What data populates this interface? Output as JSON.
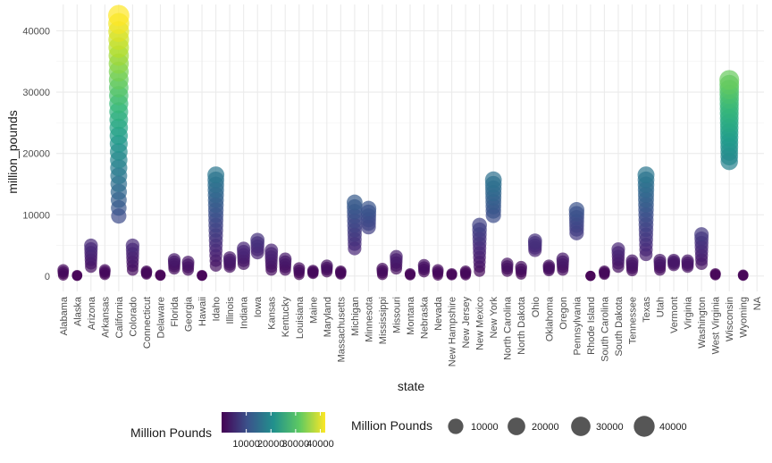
{
  "chart_data": {
    "type": "scatter",
    "xlabel": "state",
    "ylabel": "million_pounds",
    "ylim": [
      -2500,
      44300
    ],
    "yticks": [
      0,
      10000,
      20000,
      30000,
      40000
    ],
    "yticklabels": [
      "0",
      "10000",
      "20000",
      "30000",
      "40000"
    ],
    "grid": true,
    "legend_placement": "bottom",
    "color_scale": "viridis",
    "color_domain": [
      0,
      42000
    ],
    "size_domain": [
      0,
      44000
    ],
    "categories": [
      "Alabama",
      "Alaska",
      "Arizona",
      "Arkansas",
      "California",
      "Colorado",
      "Connecticut",
      "Delaware",
      "Florida",
      "Georgia",
      "Hawaii",
      "Idaho",
      "Illinois",
      "Indiana",
      "Iowa",
      "Kansas",
      "Kentucky",
      "Louisiana",
      "Maine",
      "Maryland",
      "Massachusetts",
      "Michigan",
      "Minnesota",
      "Mississippi",
      "Missouri",
      "Montana",
      "Nebraska",
      "Nevada",
      "New Hampshire",
      "New Jersey",
      "New Mexico",
      "New York",
      "North Carolina",
      "North Dakota",
      "Ohio",
      "Oklahoma",
      "Oregon",
      "Pennsylvania",
      "Rhode Island",
      "South Carolina",
      "South Dakota",
      "Tennessee",
      "Texas",
      "Utah",
      "Vermont",
      "Virginia",
      "Washington",
      "West Virginia",
      "Wisconsin",
      "Wyoming",
      "NA"
    ],
    "ranges": [
      [
        100,
        1000
      ],
      [
        10,
        150
      ],
      [
        1500,
        5000
      ],
      [
        200,
        1000
      ],
      [
        9800,
        42500
      ],
      [
        1000,
        5000
      ],
      [
        300,
        800
      ],
      [
        60,
        200
      ],
      [
        1200,
        2700
      ],
      [
        1000,
        2300
      ],
      [
        30,
        150
      ],
      [
        1700,
        16500
      ],
      [
        1500,
        3000
      ],
      [
        2000,
        4500
      ],
      [
        3800,
        5900
      ],
      [
        1000,
        4200
      ],
      [
        1000,
        2800
      ],
      [
        200,
        1300
      ],
      [
        400,
        900
      ],
      [
        700,
        1700
      ],
      [
        300,
        800
      ],
      [
        4500,
        12000
      ],
      [
        8000,
        11000
      ],
      [
        200,
        1200
      ],
      [
        1200,
        3200
      ],
      [
        150,
        400
      ],
      [
        700,
        1800
      ],
      [
        100,
        1000
      ],
      [
        150,
        400
      ],
      [
        150,
        800
      ],
      [
        800,
        8300
      ],
      [
        9900,
        15700
      ],
      [
        800,
        2000
      ],
      [
        300,
        1500
      ],
      [
        4200,
        5800
      ],
      [
        900,
        1700
      ],
      [
        1000,
        2800
      ],
      [
        7000,
        10800
      ],
      [
        10,
        40
      ],
      [
        250,
        800
      ],
      [
        1500,
        4400
      ],
      [
        900,
        2500
      ],
      [
        3500,
        16500
      ],
      [
        1000,
        2600
      ],
      [
        1800,
        2600
      ],
      [
        1500,
        2500
      ],
      [
        2000,
        6800
      ],
      [
        150,
        400
      ],
      [
        18700,
        32000
      ],
      [
        50,
        200
      ],
      null
    ],
    "legends": [
      {
        "title": "Million Pounds",
        "type": "colorbar",
        "labels": [
          "10000",
          "20000",
          "30000",
          "40000"
        ],
        "values": [
          10000,
          20000,
          30000,
          40000
        ]
      },
      {
        "title": "Million Pounds",
        "type": "size",
        "labels": [
          "10000",
          "20000",
          "30000",
          "40000"
        ],
        "values": [
          10000,
          20000,
          30000,
          40000
        ]
      }
    ]
  }
}
